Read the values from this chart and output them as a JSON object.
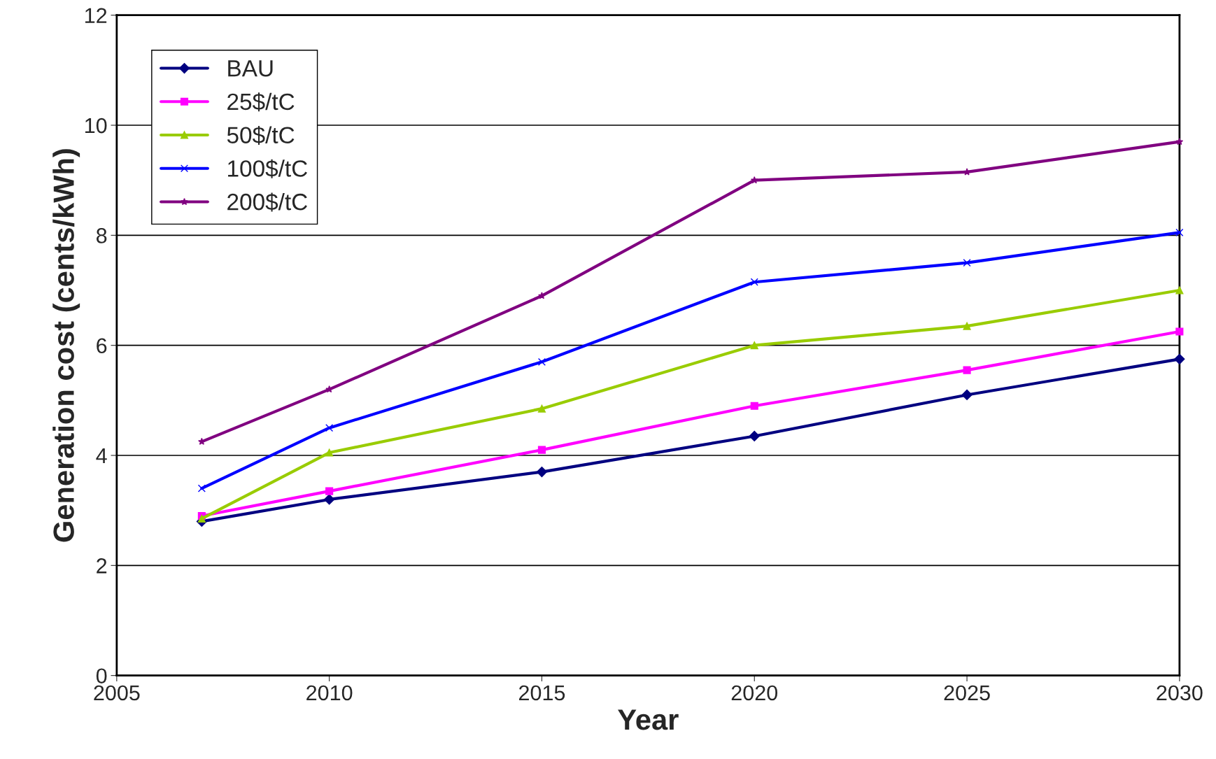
{
  "chart_data": {
    "type": "line",
    "xlabel": "Year",
    "ylabel": "Generation cost (cents/kWh)",
    "x": [
      2007,
      2010,
      2015,
      2020,
      2025,
      2030
    ],
    "xlim": [
      2005,
      2030
    ],
    "xticks": [
      2005,
      2010,
      2015,
      2020,
      2025,
      2030
    ],
    "ylim": [
      0,
      12
    ],
    "yticks": [
      0,
      2,
      4,
      6,
      8,
      10,
      12
    ],
    "grid": "y",
    "legend": "top left",
    "series": [
      {
        "name": "BAU",
        "color": "#000080",
        "marker": "diamond",
        "values": [
          2.8,
          3.2,
          3.7,
          4.35,
          5.1,
          5.75
        ]
      },
      {
        "name": "25$/tC",
        "color": "#ff00ff",
        "marker": "square",
        "values": [
          2.9,
          3.35,
          4.1,
          4.9,
          5.55,
          6.25
        ]
      },
      {
        "name": "50$/tC",
        "color": "#99cc00",
        "marker": "triangle",
        "values": [
          2.85,
          4.05,
          4.85,
          6.0,
          6.35,
          7.0
        ]
      },
      {
        "name": "100$/tC",
        "color": "#0000ff",
        "marker": "cross",
        "values": [
          3.4,
          4.5,
          5.7,
          7.15,
          7.5,
          8.05
        ]
      },
      {
        "name": "200$/tC",
        "color": "#800080",
        "marker": "star",
        "values": [
          4.25,
          5.2,
          6.9,
          9.0,
          9.15,
          9.7
        ]
      }
    ]
  }
}
